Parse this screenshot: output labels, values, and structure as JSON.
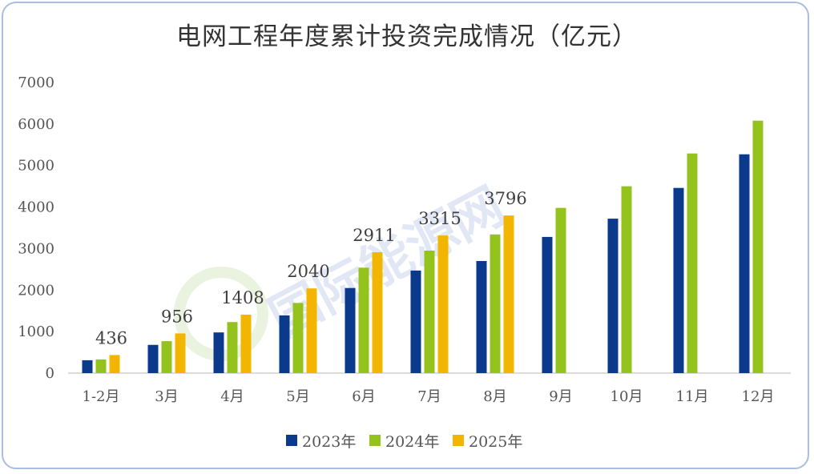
{
  "title": "电网工程年度累计投资完成情况（亿元）",
  "watermark": "国际能源网",
  "colors": {
    "2023年": "#0b3a8c",
    "2024年": "#95c31e",
    "2025年": "#f2b600",
    "axis": "#d0d0d0"
  },
  "chart_data": {
    "type": "bar",
    "title": "电网工程年度累计投资完成情况（亿元）",
    "xlabel": "",
    "ylabel": "",
    "ylim": [
      0,
      7000
    ],
    "yticks": [
      "0",
      "1000",
      "2000",
      "3000",
      "4000",
      "5000",
      "6000",
      "7000"
    ],
    "grid": false,
    "legend": "bottom",
    "categories": [
      "1-2月",
      "3月",
      "4月",
      "5月",
      "6月",
      "7月",
      "8月",
      "9月",
      "10月",
      "11月",
      "12月"
    ],
    "series": [
      {
        "name": "2023年",
        "values": [
          310,
          680,
          980,
          1390,
          2050,
          2470,
          2700,
          3280,
          3720,
          4460,
          5270
        ]
      },
      {
        "name": "2024年",
        "values": [
          330,
          770,
          1230,
          1690,
          2540,
          2950,
          3340,
          3980,
          4500,
          5290,
          6080
        ]
      },
      {
        "name": "2025年",
        "values": [
          436,
          956,
          1408,
          2040,
          2911,
          3315,
          3796,
          null,
          null,
          null,
          null
        ]
      }
    ],
    "data_labels": [
      "436",
      "956",
      "1408",
      "2040",
      "2911",
      "3315",
      "3796"
    ]
  }
}
